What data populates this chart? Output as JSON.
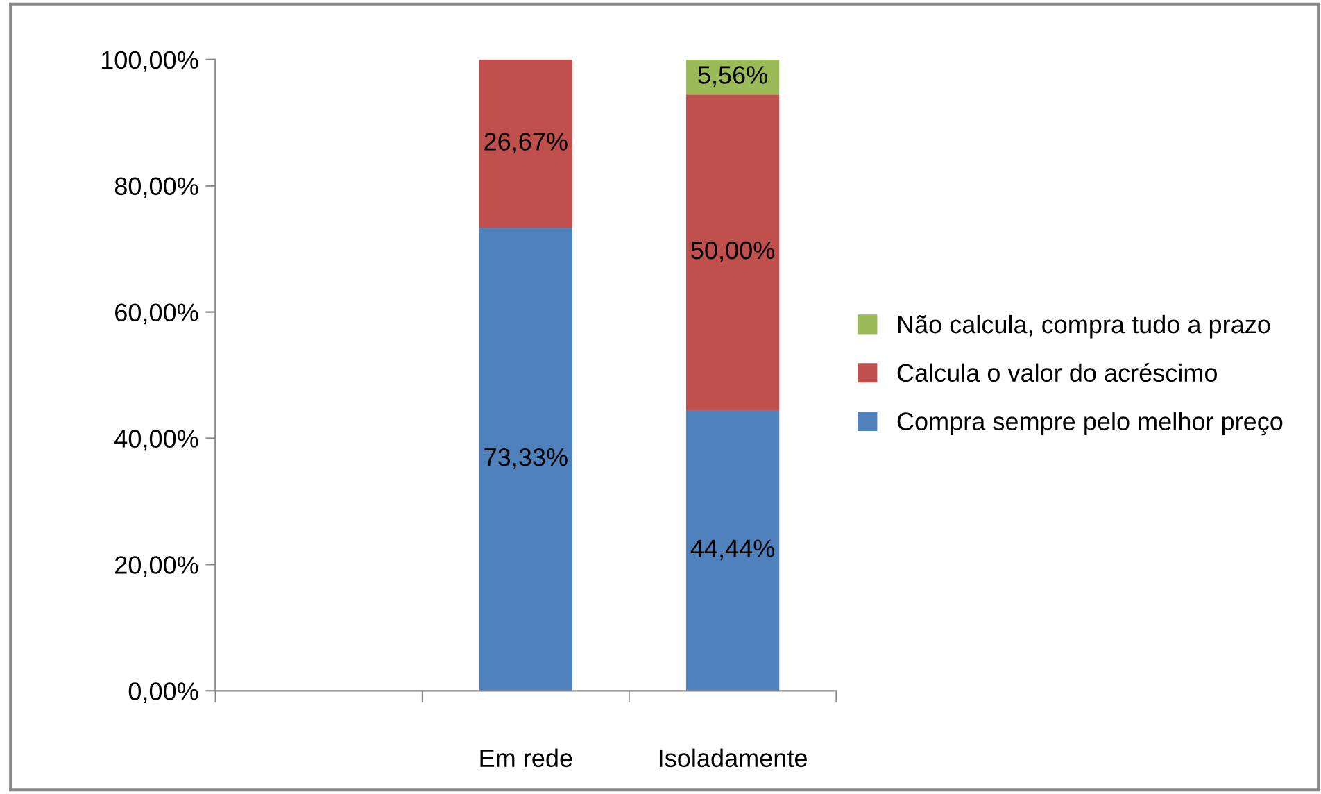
{
  "chart_data": {
    "type": "bar",
    "stacked": true,
    "categories": [
      null,
      "Em rede",
      "Isoladamente"
    ],
    "series": [
      {
        "name": "Compra sempre pelo melhor preço",
        "color": "#4f81bd",
        "values": [
          null,
          73.33,
          44.44
        ],
        "value_labels": [
          null,
          "73,33%",
          "44,44%"
        ]
      },
      {
        "name": "Calcula o valor do acréscimo",
        "color": "#c0504d",
        "values": [
          null,
          26.67,
          50.0
        ],
        "value_labels": [
          null,
          "26,67%",
          "50,00%"
        ]
      },
      {
        "name": "Não calcula, compra tudo a prazo",
        "color": "#9bbb59",
        "values": [
          null,
          null,
          5.56
        ],
        "value_labels": [
          null,
          null,
          "5,56%"
        ]
      }
    ],
    "ylim": [
      0,
      100
    ],
    "yticks": [
      {
        "value": 0,
        "label": "0,00%"
      },
      {
        "value": 20,
        "label": "20,00%"
      },
      {
        "value": 40,
        "label": "40,00%"
      },
      {
        "value": 60,
        "label": "60,00%"
      },
      {
        "value": 80,
        "label": "80,00%"
      },
      {
        "value": 100,
        "label": "100,00%"
      }
    ],
    "grid": false,
    "legend": "right"
  }
}
